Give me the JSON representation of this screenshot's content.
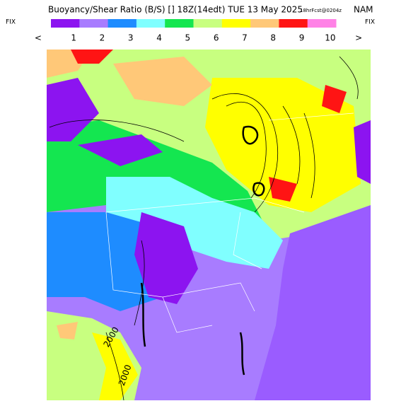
{
  "header": {
    "title": "Buoyancy/Shear Ratio (B/S) [] 18Z(14edt) TUE 13 May 2025",
    "forecast": "18hrFcst@0204z",
    "model": "NAM"
  },
  "legend": {
    "left": "FIX",
    "right": "FIX",
    "colors": [
      "#8c14f0",
      "#a87cff",
      "#1e8cff",
      "#80ffff",
      "#14e650",
      "#c8ff80",
      "#ffff00",
      "#ffc878",
      "#ff1414",
      "#ff82e6"
    ],
    "labels": [
      "<",
      "1",
      "2",
      "3",
      "4",
      "5",
      "6",
      "7",
      "8",
      "9",
      "10",
      ">"
    ]
  },
  "map": {
    "contour_labels": [
      "2000",
      "2000"
    ]
  }
}
